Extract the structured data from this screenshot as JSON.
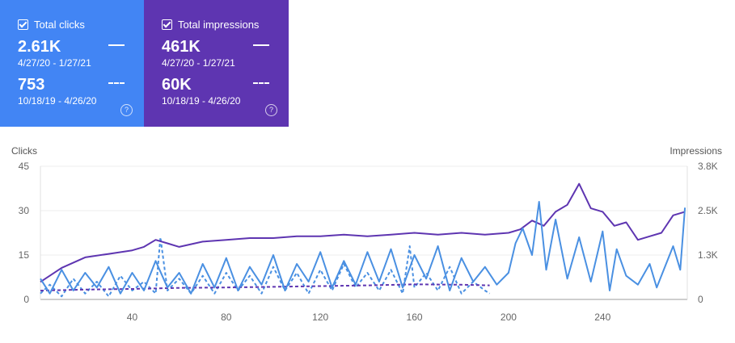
{
  "cards": {
    "clicks": {
      "label": "Total clicks",
      "current_value": "2.61K",
      "current_range": "4/27/20 - 1/27/21",
      "previous_value": "753",
      "previous_range": "10/18/19 - 4/26/20",
      "help": "?",
      "color": "#4285f4"
    },
    "impressions": {
      "label": "Total impressions",
      "current_value": "461K",
      "current_range": "4/27/20 - 1/27/21",
      "previous_value": "60K",
      "previous_range": "10/18/19 - 4/26/20",
      "help": "?",
      "color": "#5e35b1"
    }
  },
  "chart_data": {
    "type": "line",
    "title": "",
    "ylabel_left": "Clicks",
    "ylabel_right": "Impressions",
    "x_ticks": [
      "40",
      "80",
      "120",
      "160",
      "200",
      "240"
    ],
    "y_left_ticks": [
      "0",
      "15",
      "30",
      "45"
    ],
    "y_right_ticks": [
      "0",
      "1.3K",
      "2.5K",
      "3.8K"
    ],
    "xlim": [
      1,
      276
    ],
    "y_left_lim": [
      0,
      45
    ],
    "y_right_lim": [
      0,
      3800
    ],
    "grid": true,
    "series": [
      {
        "axis": "right",
        "style": "solid",
        "color": "#5e35b1",
        "x": [
          1,
          10,
          20,
          30,
          40,
          45,
          50,
          55,
          60,
          70,
          80,
          90,
          100,
          110,
          120,
          130,
          140,
          150,
          160,
          170,
          180,
          190,
          200,
          205,
          210,
          215,
          220,
          225,
          230,
          235,
          240,
          245,
          250,
          255,
          260,
          265,
          270,
          275
        ],
        "y": [
          500,
          900,
          1200,
          1300,
          1400,
          1500,
          1700,
          1600,
          1500,
          1650,
          1700,
          1750,
          1750,
          1800,
          1800,
          1850,
          1800,
          1850,
          1900,
          1850,
          1900,
          1850,
          1900,
          2000,
          2250,
          2100,
          2500,
          2700,
          3300,
          2600,
          2500,
          2100,
          2200,
          1700,
          1800,
          1900,
          2400,
          2500
        ]
      },
      {
        "axis": "right",
        "style": "dashed",
        "color": "#5e35b1",
        "x": [
          1,
          20,
          40,
          60,
          80,
          100,
          120,
          140,
          160,
          180,
          192
        ],
        "y": [
          250,
          280,
          300,
          330,
          340,
          360,
          380,
          400,
          430,
          420,
          400
        ]
      },
      {
        "axis": "left",
        "style": "solid",
        "color": "#4a90e2",
        "x": [
          1,
          5,
          10,
          15,
          20,
          25,
          30,
          35,
          40,
          45,
          50,
          55,
          60,
          65,
          70,
          75,
          80,
          85,
          90,
          95,
          100,
          105,
          110,
          115,
          120,
          125,
          130,
          135,
          140,
          145,
          150,
          155,
          160,
          165,
          170,
          175,
          180,
          185,
          190,
          195,
          200,
          203,
          206,
          210,
          213,
          216,
          220,
          225,
          230,
          235,
          240,
          243,
          246,
          250,
          255,
          260,
          263,
          266,
          270,
          273,
          275
        ],
        "y": [
          7,
          2,
          10,
          3,
          9,
          4,
          11,
          2,
          9,
          3,
          13,
          4,
          9,
          2,
          12,
          4,
          14,
          3,
          11,
          5,
          15,
          3,
          12,
          6,
          16,
          4,
          13,
          5,
          16,
          6,
          17,
          4,
          15,
          7,
          18,
          3,
          14,
          6,
          11,
          5,
          9,
          19,
          24,
          15,
          33,
          10,
          27,
          7,
          21,
          6,
          23,
          3,
          17,
          8,
          5,
          12,
          4,
          10,
          18,
          10,
          31
        ]
      },
      {
        "axis": "left",
        "style": "dashed",
        "color": "#4a90e2",
        "x": [
          1,
          5,
          10,
          15,
          20,
          25,
          30,
          35,
          40,
          45,
          50,
          52,
          55,
          60,
          65,
          70,
          75,
          80,
          85,
          90,
          95,
          100,
          105,
          110,
          115,
          120,
          125,
          130,
          135,
          140,
          145,
          150,
          155,
          158,
          160,
          165,
          170,
          175,
          180,
          185,
          190,
          192
        ],
        "y": [
          2,
          5,
          1,
          7,
          2,
          6,
          1,
          8,
          3,
          6,
          2,
          21,
          3,
          7,
          2,
          8,
          2,
          9,
          3,
          8,
          2,
          11,
          3,
          9,
          2,
          10,
          3,
          12,
          4,
          9,
          3,
          10,
          2,
          18,
          4,
          9,
          3,
          11,
          2,
          6,
          3,
          2
        ]
      }
    ]
  }
}
